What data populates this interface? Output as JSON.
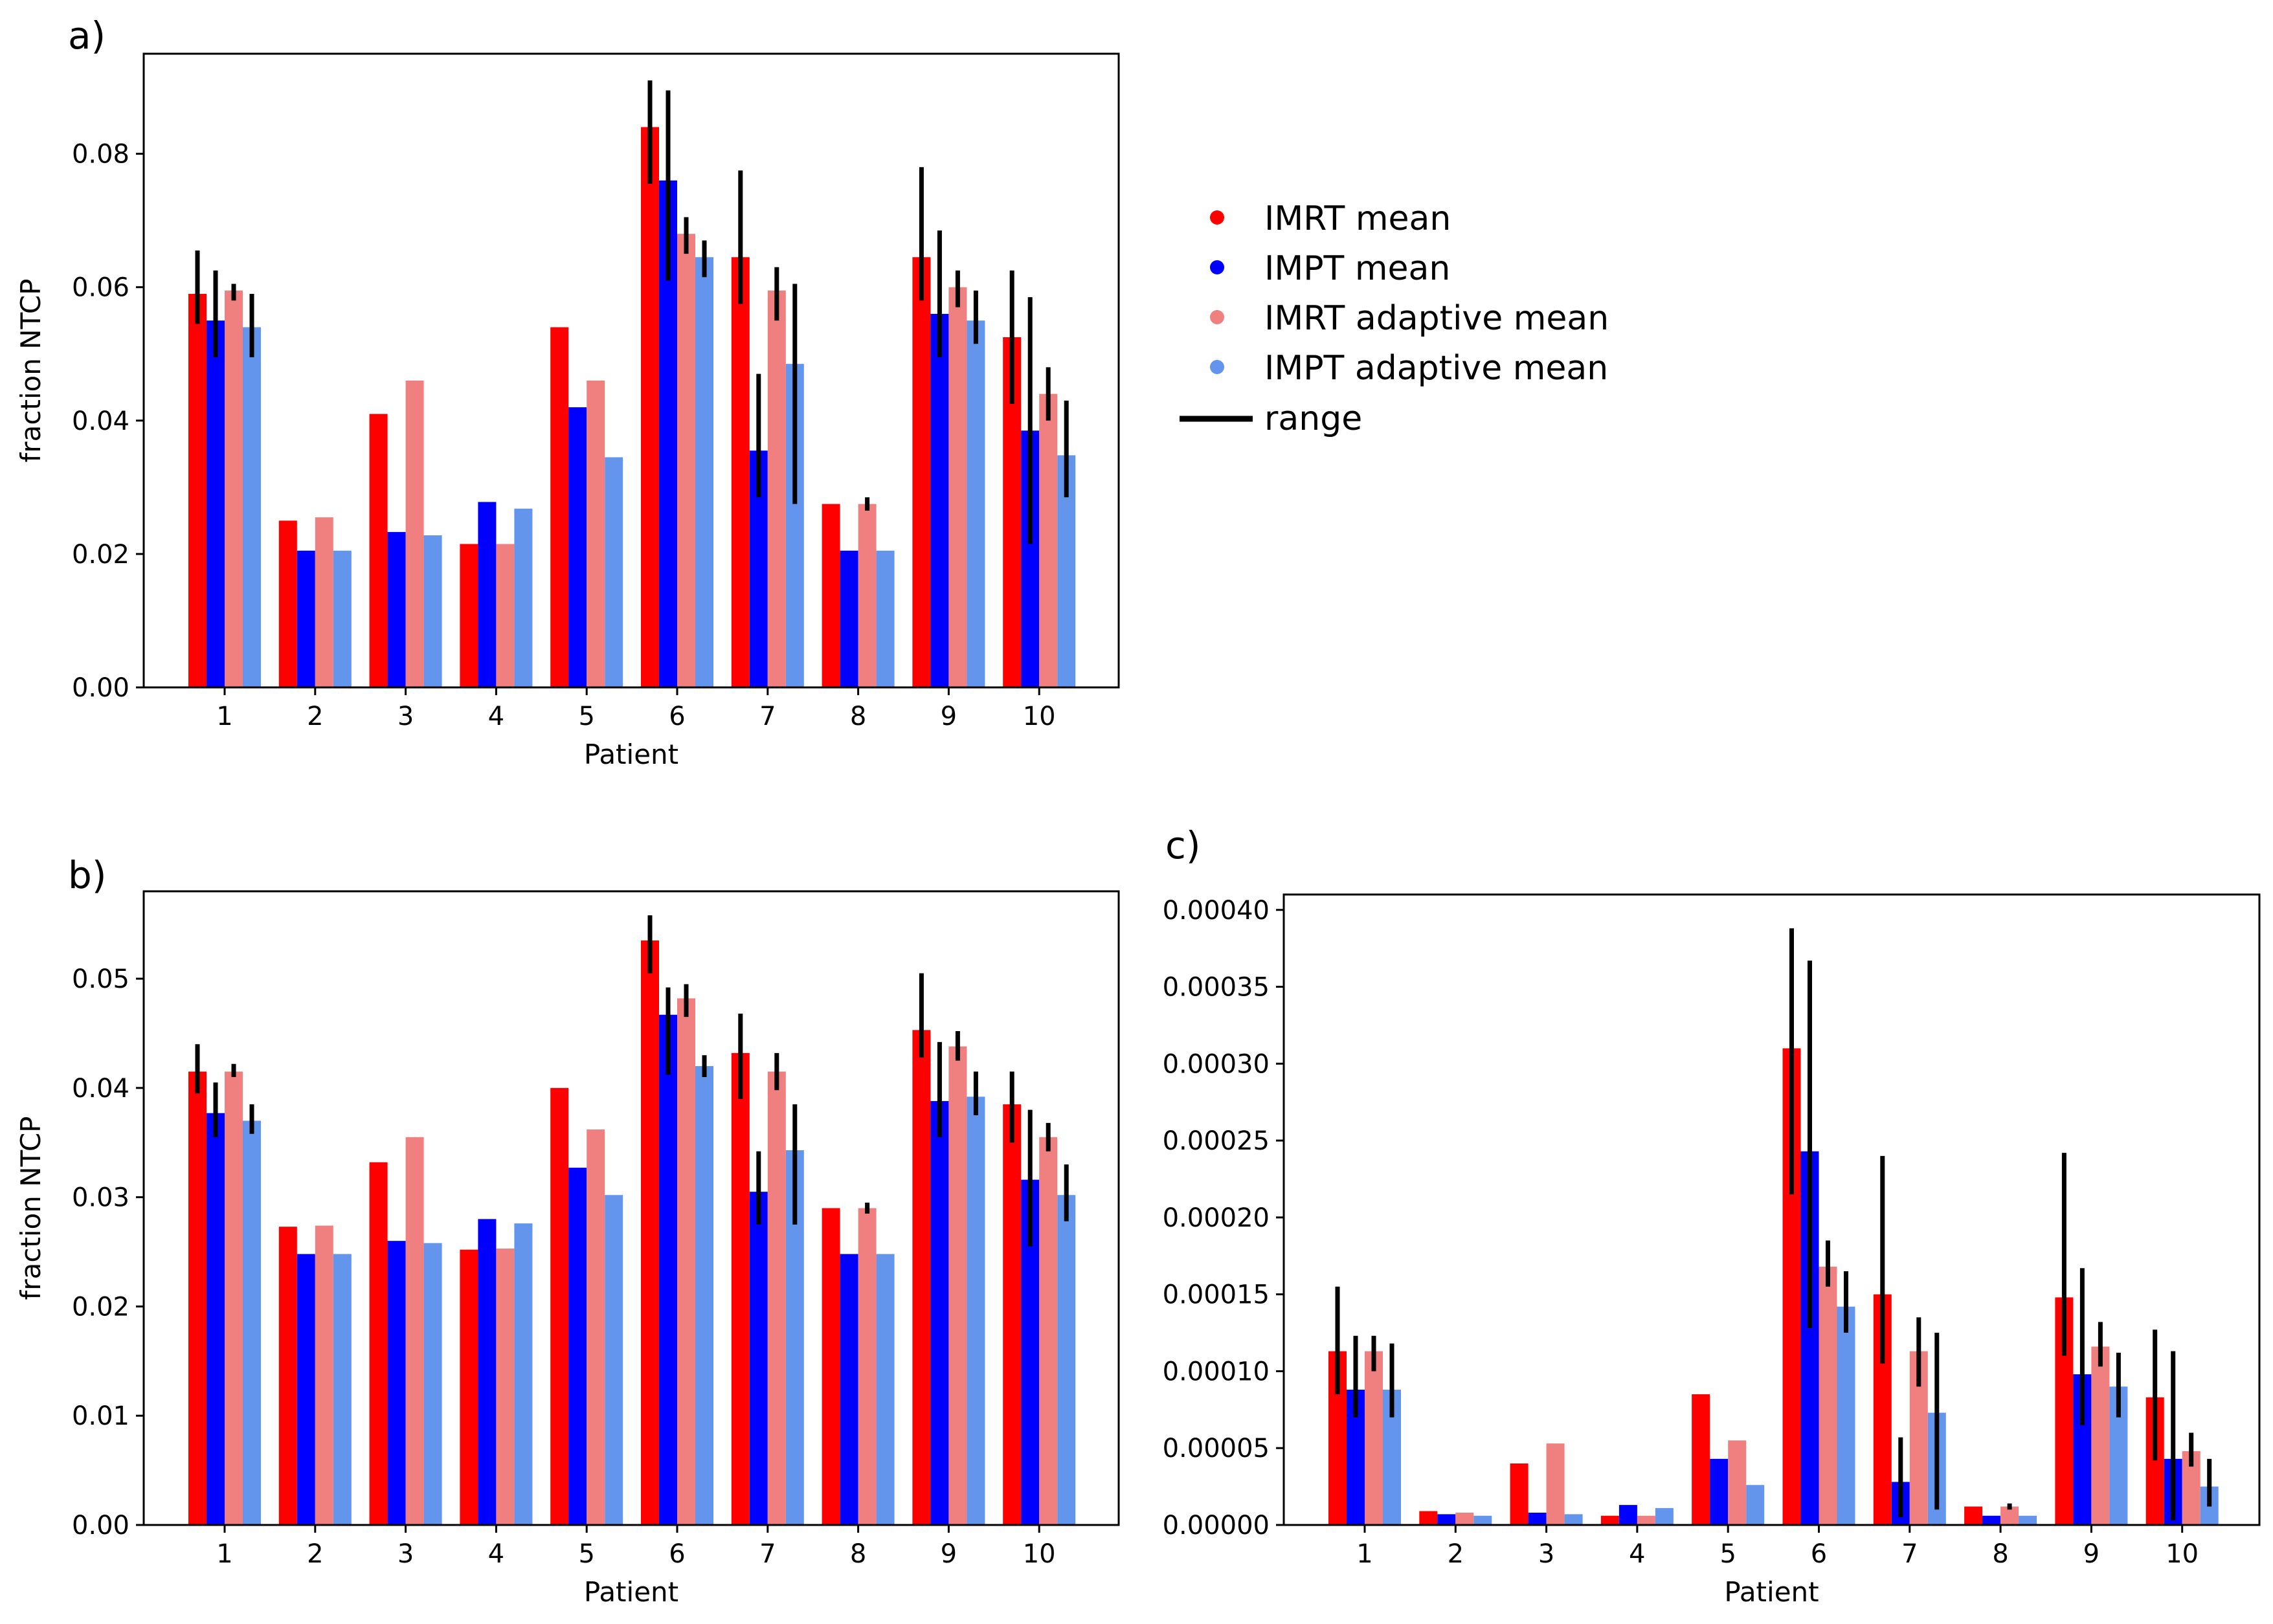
{
  "panels": {
    "a": "a)",
    "b": "b)",
    "c": "c)"
  },
  "colors": {
    "imrt": "#ff0000",
    "impt": "#0000ff",
    "imrt_adaptive": "#f08080",
    "impt_adaptive": "#6495ed",
    "range": "#000000"
  },
  "legend": {
    "imrt": "IMRT mean",
    "impt": "IMPT mean",
    "imrt_adaptive": "IMRT adaptive mean",
    "impt_adaptive": "IMPT adaptive mean",
    "range": "range"
  },
  "chart_data": [
    {
      "id": "a",
      "type": "bar",
      "xlabel": "Patient",
      "ylabel": "fraction NTCP",
      "ylim": [
        0,
        0.095
      ],
      "yticks": [
        "0.00",
        "0.02",
        "0.04",
        "0.06",
        "0.08"
      ],
      "categories": [
        "1",
        "2",
        "3",
        "4",
        "5",
        "6",
        "7",
        "8",
        "9",
        "10"
      ],
      "series": [
        {
          "name": "IMRT mean",
          "values": [
            0.059,
            0.025,
            0.041,
            0.0215,
            0.054,
            0.084,
            0.0645,
            0.0275,
            0.0645,
            0.0525
          ],
          "range": [
            [
              0.0545,
              0.0655
            ],
            null,
            null,
            null,
            null,
            [
              0.0755,
              0.091
            ],
            [
              0.0575,
              0.0775
            ],
            null,
            [
              0.058,
              0.078
            ],
            [
              0.0425,
              0.0625
            ]
          ]
        },
        {
          "name": "IMPT mean",
          "values": [
            0.055,
            0.0205,
            0.0233,
            0.0278,
            0.042,
            0.076,
            0.0355,
            0.0205,
            0.056,
            0.0385
          ],
          "range": [
            [
              0.0495,
              0.0625
            ],
            null,
            null,
            null,
            null,
            [
              0.061,
              0.0895
            ],
            [
              0.0285,
              0.047
            ],
            null,
            [
              0.0495,
              0.0685
            ],
            [
              0.0215,
              0.0585
            ]
          ]
        },
        {
          "name": "IMRT adaptive mean",
          "values": [
            0.0595,
            0.0255,
            0.046,
            0.0215,
            0.046,
            0.068,
            0.0595,
            0.0275,
            0.06,
            0.044
          ],
          "range": [
            [
              0.058,
              0.0605
            ],
            null,
            null,
            null,
            null,
            [
              0.065,
              0.0705
            ],
            [
              0.055,
              0.063
            ],
            [
              0.0265,
              0.0285
            ],
            [
              0.057,
              0.0625
            ],
            [
              0.04,
              0.048
            ]
          ]
        },
        {
          "name": "IMPT adaptive mean",
          "values": [
            0.054,
            0.0205,
            0.0228,
            0.0268,
            0.0345,
            0.0645,
            0.0485,
            0.0205,
            0.055,
            0.0348
          ],
          "range": [
            [
              0.0495,
              0.059
            ],
            null,
            null,
            null,
            null,
            [
              0.0615,
              0.067
            ],
            [
              0.0275,
              0.0605
            ],
            null,
            [
              0.0515,
              0.0595
            ],
            [
              0.0285,
              0.043
            ]
          ]
        }
      ]
    },
    {
      "id": "b",
      "type": "bar",
      "xlabel": "Patient",
      "ylabel": "fraction NTCP",
      "ylim": [
        0,
        0.058
      ],
      "yticks": [
        "0.00",
        "0.01",
        "0.02",
        "0.03",
        "0.04",
        "0.05"
      ],
      "categories": [
        "1",
        "2",
        "3",
        "4",
        "5",
        "6",
        "7",
        "8",
        "9",
        "10"
      ],
      "series": [
        {
          "name": "IMRT mean",
          "values": [
            0.0415,
            0.0273,
            0.0332,
            0.0252,
            0.04,
            0.0535,
            0.0432,
            0.029,
            0.0453,
            0.0385
          ],
          "range": [
            [
              0.0395,
              0.044
            ],
            null,
            null,
            null,
            null,
            [
              0.0505,
              0.0558
            ],
            [
              0.039,
              0.0468
            ],
            null,
            [
              0.0428,
              0.0505
            ],
            [
              0.035,
              0.0415
            ]
          ]
        },
        {
          "name": "IMPT mean",
          "values": [
            0.0377,
            0.0248,
            0.026,
            0.028,
            0.0327,
            0.0467,
            0.0305,
            0.0248,
            0.0388,
            0.0316
          ],
          "range": [
            [
              0.0355,
              0.0405
            ],
            null,
            null,
            null,
            null,
            [
              0.0412,
              0.0492
            ],
            [
              0.0275,
              0.0342
            ],
            null,
            [
              0.0355,
              0.0442
            ],
            [
              0.0255,
              0.038
            ]
          ]
        },
        {
          "name": "IMRT adaptive mean",
          "values": [
            0.0415,
            0.0274,
            0.0355,
            0.0253,
            0.0362,
            0.0482,
            0.0415,
            0.029,
            0.0438,
            0.0355
          ],
          "range": [
            [
              0.041,
              0.0422
            ],
            null,
            null,
            null,
            null,
            [
              0.0465,
              0.0495
            ],
            [
              0.0398,
              0.0432
            ],
            [
              0.0285,
              0.0295
            ],
            [
              0.0425,
              0.0452
            ],
            [
              0.0342,
              0.0368
            ]
          ]
        },
        {
          "name": "IMPT adaptive mean",
          "values": [
            0.037,
            0.0248,
            0.0258,
            0.0276,
            0.0302,
            0.042,
            0.0343,
            0.0248,
            0.0392,
            0.0302
          ],
          "range": [
            [
              0.0358,
              0.0385
            ],
            null,
            null,
            null,
            null,
            [
              0.041,
              0.043
            ],
            [
              0.0275,
              0.0385
            ],
            null,
            [
              0.0375,
              0.0415
            ],
            [
              0.0278,
              0.033
            ]
          ]
        }
      ]
    },
    {
      "id": "c",
      "type": "bar",
      "xlabel": "Patient",
      "ylabel": "",
      "ylim": [
        0,
        0.00041
      ],
      "yticks": [
        "0.00000",
        "0.00005",
        "0.00010",
        "0.00015",
        "0.00020",
        "0.00025",
        "0.00030",
        "0.00035",
        "0.00040"
      ],
      "categories": [
        "1",
        "2",
        "3",
        "4",
        "5",
        "6",
        "7",
        "8",
        "9",
        "10"
      ],
      "series": [
        {
          "name": "IMRT mean",
          "values": [
            0.000113,
            9e-06,
            4e-05,
            6e-06,
            8.5e-05,
            0.00031,
            0.00015,
            1.2e-05,
            0.000148,
            8.3e-05
          ],
          "range": [
            [
              8.5e-05,
              0.000155
            ],
            null,
            null,
            null,
            null,
            [
              0.000215,
              0.000388
            ],
            [
              0.000105,
              0.00024
            ],
            null,
            [
              0.00011,
              0.000242
            ],
            [
              4.2e-05,
              0.000127
            ]
          ]
        },
        {
          "name": "IMPT mean",
          "values": [
            8.8e-05,
            7e-06,
            8e-06,
            1.3e-05,
            4.3e-05,
            0.000243,
            2.8e-05,
            6e-06,
            9.8e-05,
            4.3e-05
          ],
          "range": [
            [
              7e-05,
              0.000123
            ],
            null,
            null,
            null,
            null,
            [
              0.000128,
              0.000367
            ],
            [
              5e-06,
              5.7e-05
            ],
            null,
            [
              6.5e-05,
              0.000167
            ],
            [
              3e-06,
              0.000113
            ]
          ]
        },
        {
          "name": "IMRT adaptive mean",
          "values": [
            0.000113,
            8e-06,
            5.3e-05,
            6e-06,
            5.5e-05,
            0.000168,
            0.000113,
            1.2e-05,
            0.000116,
            4.8e-05
          ],
          "range": [
            [
              0.0001,
              0.000123
            ],
            null,
            null,
            null,
            null,
            [
              0.000155,
              0.000185
            ],
            [
              9e-05,
              0.000135
            ],
            [
              1e-05,
              1.4e-05
            ],
            [
              0.000103,
              0.000132
            ],
            [
              3.8e-05,
              6e-05
            ]
          ]
        },
        {
          "name": "IMPT adaptive mean",
          "values": [
            8.8e-05,
            6e-06,
            7e-06,
            1.1e-05,
            2.6e-05,
            0.000142,
            7.3e-05,
            6e-06,
            9e-05,
            2.5e-05
          ],
          "range": [
            [
              7e-05,
              0.000118
            ],
            null,
            null,
            null,
            null,
            [
              0.000125,
              0.000165
            ],
            [
              1e-05,
              0.000125
            ],
            null,
            [
              7e-05,
              0.000112
            ],
            [
              1.2e-05,
              4.3e-05
            ]
          ]
        }
      ]
    }
  ]
}
